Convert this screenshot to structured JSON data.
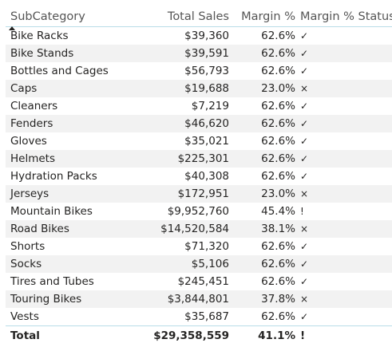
{
  "columns": {
    "subcategory": "SubCategory",
    "total_sales": "Total Sales",
    "margin": "Margin %",
    "status": "Margin % Status"
  },
  "rows": [
    {
      "subcategory": "Bike Racks",
      "total_sales": "$39,360",
      "margin": "62.6%",
      "status": "✓"
    },
    {
      "subcategory": "Bike Stands",
      "total_sales": "$39,591",
      "margin": "62.6%",
      "status": "✓"
    },
    {
      "subcategory": "Bottles and Cages",
      "total_sales": "$56,793",
      "margin": "62.6%",
      "status": "✓"
    },
    {
      "subcategory": "Caps",
      "total_sales": "$19,688",
      "margin": "23.0%",
      "status": "×"
    },
    {
      "subcategory": "Cleaners",
      "total_sales": "$7,219",
      "margin": "62.6%",
      "status": "✓"
    },
    {
      "subcategory": "Fenders",
      "total_sales": "$46,620",
      "margin": "62.6%",
      "status": "✓"
    },
    {
      "subcategory": "Gloves",
      "total_sales": "$35,021",
      "margin": "62.6%",
      "status": "✓"
    },
    {
      "subcategory": "Helmets",
      "total_sales": "$225,301",
      "margin": "62.6%",
      "status": "✓"
    },
    {
      "subcategory": "Hydration Packs",
      "total_sales": "$40,308",
      "margin": "62.6%",
      "status": "✓"
    },
    {
      "subcategory": "Jerseys",
      "total_sales": "$172,951",
      "margin": "23.0%",
      "status": "×"
    },
    {
      "subcategory": "Mountain Bikes",
      "total_sales": "$9,952,760",
      "margin": "45.4%",
      "status": "!"
    },
    {
      "subcategory": "Road Bikes",
      "total_sales": "$14,520,584",
      "margin": "38.1%",
      "status": "×"
    },
    {
      "subcategory": "Shorts",
      "total_sales": "$71,320",
      "margin": "62.6%",
      "status": "✓"
    },
    {
      "subcategory": "Socks",
      "total_sales": "$5,106",
      "margin": "62.6%",
      "status": "✓"
    },
    {
      "subcategory": "Tires and Tubes",
      "total_sales": "$245,451",
      "margin": "62.6%",
      "status": "✓"
    },
    {
      "subcategory": "Touring Bikes",
      "total_sales": "$3,844,801",
      "margin": "37.8%",
      "status": "×"
    },
    {
      "subcategory": "Vests",
      "total_sales": "$35,687",
      "margin": "62.6%",
      "status": "✓"
    }
  ],
  "total": {
    "label": "Total",
    "total_sales": "$29,358,559",
    "margin": "41.1%",
    "status": "!"
  },
  "sort": {
    "column": "subcategory",
    "direction": "ascending",
    "icon": "sort-ascending-icon"
  },
  "colors": {
    "text": "#252423",
    "header_text": "#555555",
    "alt_row": "#f2f2f2",
    "divider": "#b9dde8"
  }
}
